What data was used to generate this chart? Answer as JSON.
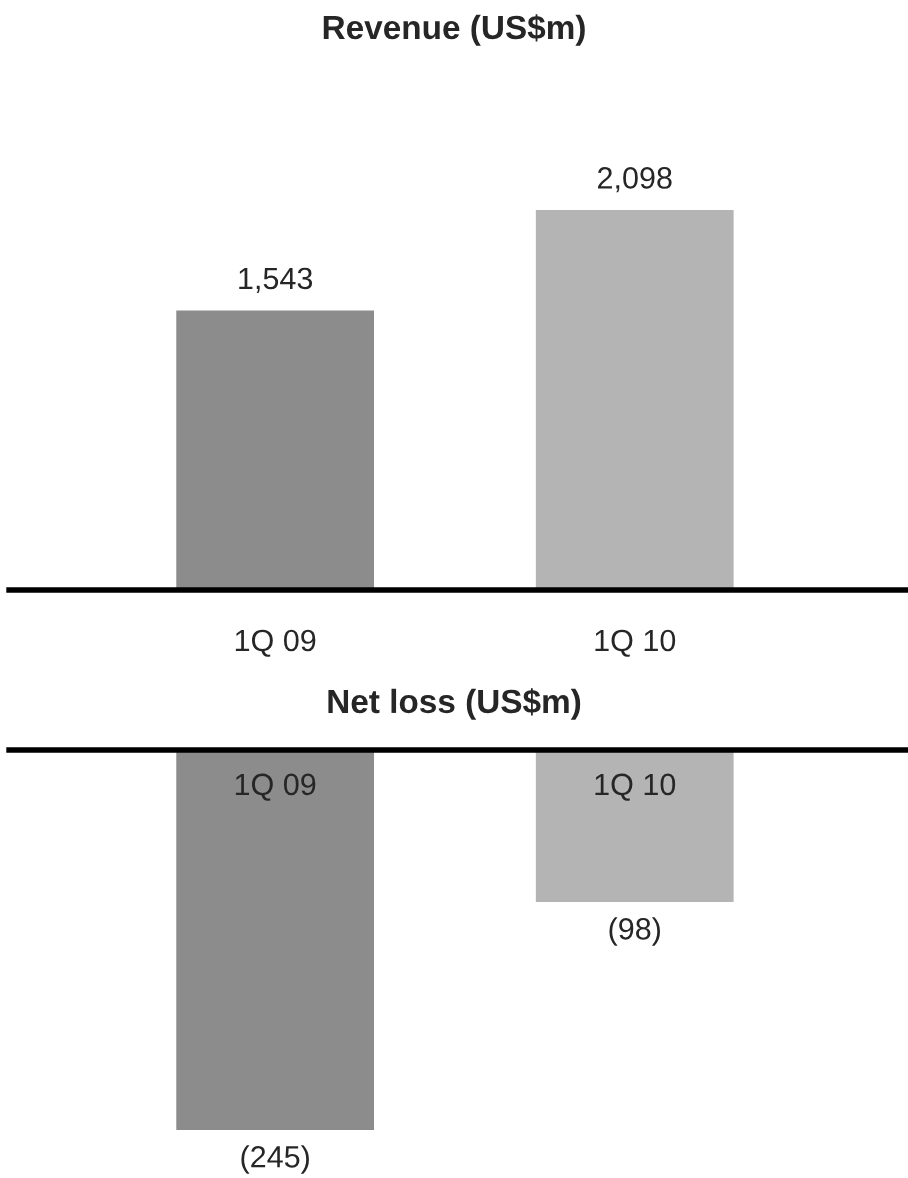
{
  "chart_data": [
    {
      "type": "bar",
      "title": "Revenue (US$m)",
      "categories": [
        "1Q 09",
        "1Q 10"
      ],
      "values": [
        1543,
        2098
      ],
      "colors": [
        "#8c8c8c",
        "#b4b4b4"
      ],
      "value_labels": [
        "1,543",
        "2,098"
      ]
    },
    {
      "type": "bar",
      "title": "Net loss (US$m)",
      "categories": [
        "1Q 09",
        "1Q 10"
      ],
      "values": [
        -245,
        -98
      ],
      "colors": [
        "#8c8c8c",
        "#b4b4b4"
      ],
      "value_labels": [
        "(245)",
        "(98)"
      ]
    }
  ]
}
